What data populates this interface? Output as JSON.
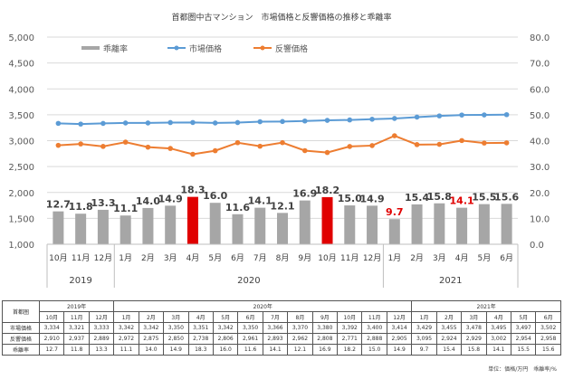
{
  "chart_data": {
    "type": "bar+line",
    "title": "首都圏中古マンション　市場価格と反響価格の推移と乖離率",
    "legend": [
      "乖離率",
      "市場価格",
      "反響価格"
    ],
    "legend_position": "top",
    "categories": [
      "10月",
      "11月",
      "12月",
      "1月",
      "2月",
      "3月",
      "4月",
      "5月",
      "6月",
      "7月",
      "8月",
      "9月",
      "10月",
      "11月",
      "12月",
      "1月",
      "2月",
      "3月",
      "4月",
      "5月",
      "6月"
    ],
    "years": [
      {
        "label": "2019",
        "span": 3
      },
      {
        "label": "2020",
        "span": 12
      },
      {
        "label": "2021",
        "span": 6
      }
    ],
    "y_left": {
      "range": [
        1000,
        5000
      ],
      "ticks": [
        "1,000",
        "1,500",
        "2,000",
        "2,500",
        "3,000",
        "3,500",
        "4,000",
        "4,500",
        "5,000"
      ]
    },
    "y_right": {
      "range": [
        0,
        80
      ],
      "ticks": [
        "0.0",
        "10.0",
        "20.0",
        "30.0",
        "40.0",
        "50.0",
        "60.0",
        "70.0",
        "80.0"
      ]
    },
    "grid": true,
    "series": [
      {
        "name": "乖離率",
        "axis": "right",
        "type": "bar",
        "color": "#a6a6a6",
        "highlight_color": "#e00000",
        "highlight_indices": [
          6,
          12
        ],
        "red_label_indices": [
          15,
          18
        ],
        "values": [
          12.7,
          11.8,
          13.3,
          11.1,
          14.0,
          14.9,
          18.3,
          16.0,
          11.6,
          14.1,
          12.1,
          16.9,
          18.2,
          15.0,
          14.9,
          9.7,
          15.4,
          15.8,
          14.1,
          15.5,
          15.6
        ]
      },
      {
        "name": "市場価格",
        "axis": "left",
        "type": "line",
        "color": "#5b9bd5",
        "values": [
          3334,
          3321,
          3333,
          3342,
          3342,
          3350,
          3351,
          3342,
          3350,
          3366,
          3370,
          3380,
          3392,
          3400,
          3414,
          3429,
          3455,
          3478,
          3495,
          3497,
          3502
        ]
      },
      {
        "name": "反響価格",
        "axis": "left",
        "type": "line",
        "color": "#ed7d31",
        "values": [
          2910,
          2937,
          2889,
          2972,
          2875,
          2850,
          2738,
          2806,
          2961,
          2893,
          2962,
          2808,
          2771,
          2888,
          2905,
          3095,
          2924,
          2929,
          3002,
          2954,
          2958
        ]
      }
    ]
  },
  "table": {
    "corner": "首都圏",
    "years": [
      "2019年",
      "2020年",
      "2021年"
    ],
    "months": [
      "10月",
      "11月",
      "12月",
      "1月",
      "2月",
      "3月",
      "4月",
      "5月",
      "6月",
      "7月",
      "8月",
      "9月",
      "10月",
      "11月",
      "12月",
      "1月",
      "2月",
      "3月",
      "4月",
      "5月",
      "6月"
    ],
    "rows": [
      {
        "label": "市場価格",
        "cells": [
          "3,334",
          "3,321",
          "3,333",
          "3,342",
          "3,342",
          "3,350",
          "3,351",
          "3,342",
          "3,350",
          "3,366",
          "3,370",
          "3,380",
          "3,392",
          "3,400",
          "3,414",
          "3,429",
          "3,455",
          "3,478",
          "3,495",
          "3,497",
          "3,502"
        ]
      },
      {
        "label": "反響価格",
        "cells": [
          "2,910",
          "2,937",
          "2,889",
          "2,972",
          "2,875",
          "2,850",
          "2,738",
          "2,806",
          "2,961",
          "2,893",
          "2,962",
          "2,808",
          "2,771",
          "2,888",
          "2,905",
          "3,095",
          "2,924",
          "2,929",
          "3,002",
          "2,954",
          "2,958"
        ]
      },
      {
        "label": "乖離率",
        "cells": [
          "12.7",
          "11.8",
          "13.3",
          "11.1",
          "14.0",
          "14.9",
          "18.3",
          "16.0",
          "11.6",
          "14.1",
          "12.1",
          "16.9",
          "18.2",
          "15.0",
          "14.9",
          "9.7",
          "15.4",
          "15.8",
          "14.1",
          "15.5",
          "15.6"
        ]
      }
    ]
  },
  "note": "単位：価格/万円　乖離率/%"
}
